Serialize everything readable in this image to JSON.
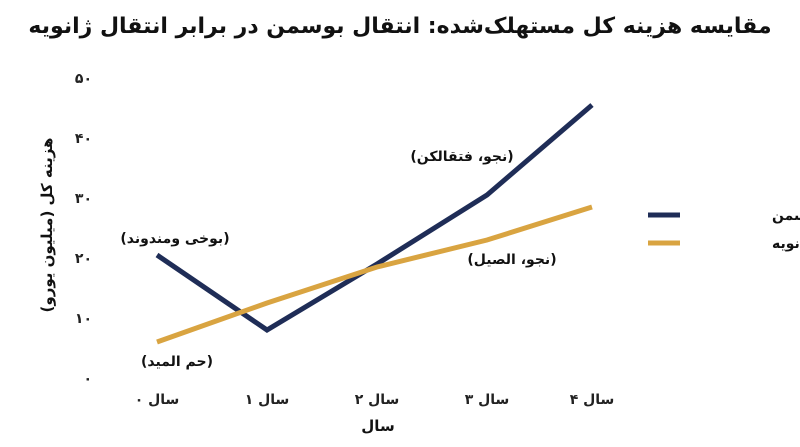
{
  "chart_data": {
    "type": "line",
    "title": "مقایسه هزینه کل مستهلک‌شده: انتقال بوسمن در برابر انتقال ژانویه",
    "xlabel": "سال",
    "ylabel": "هزینه کل (میلیون یورو)",
    "categories": [
      "سال ۰",
      "سال ۱",
      "سال ۲",
      "سال ۳",
      "سال ۴"
    ],
    "ylim": [
      0,
      50
    ],
    "yticks": [
      "۰",
      "۱۰",
      "۲۰",
      "۳۰",
      "۴۰",
      "۵۰"
    ],
    "grid": false,
    "legend_position": "right",
    "series": [
      {
        "name": "انتقال بوسمن",
        "color": "#1f2d57",
        "values": [
          20.5,
          8,
          19,
          30.5,
          45.5
        ]
      },
      {
        "name": "انتقال ژانویه",
        "color": "#d9a441",
        "values": [
          6,
          12.5,
          18.5,
          23,
          28.5
        ]
      }
    ],
    "annotations": [
      {
        "text": "(بوخی ومندوند)",
        "series": 0,
        "index": 0,
        "placement": "above"
      },
      {
        "text": "(حم المید)",
        "series": 1,
        "index": 0,
        "placement": "below"
      },
      {
        "text": "(نجو، فتقالکن)",
        "series": 0,
        "index": 3,
        "placement": "above"
      },
      {
        "text": "(نجو، الصیل)",
        "series": 1,
        "index": 3,
        "placement": "below-right"
      }
    ]
  }
}
